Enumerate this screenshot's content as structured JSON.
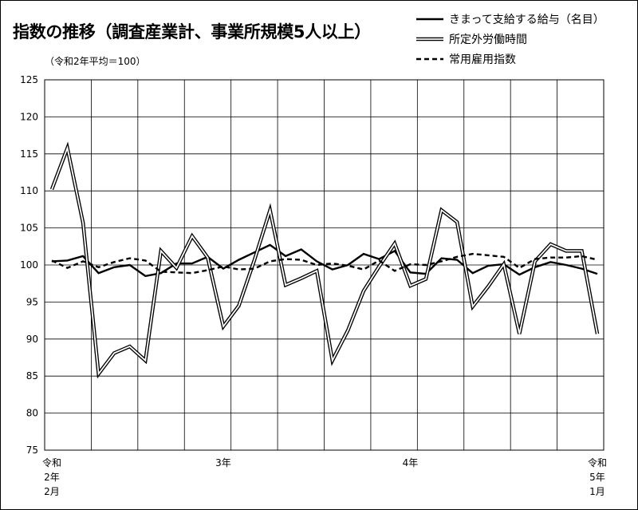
{
  "chart_data": {
    "type": "line",
    "title": "指数の推移（調査産業計、事業所規模5人以上）",
    "base_note": "（令和2年平均＝100）",
    "ylim": [
      75,
      125
    ],
    "ytick_step": 5,
    "grid": true,
    "legend_position": "top-right",
    "x_tick_labels": [
      {
        "index": 0,
        "lines": [
          "令和",
          "2年",
          "2月"
        ]
      },
      {
        "index": 11,
        "lines": [
          "3年"
        ]
      },
      {
        "index": 23,
        "lines": [
          "4年"
        ]
      },
      {
        "index": 35,
        "lines": [
          "令和",
          "5年",
          "1月"
        ]
      }
    ],
    "x_count": 36,
    "series": [
      {
        "name": "きまって支給する給与（名目）",
        "style": "solid",
        "values": [
          100.5,
          100.6,
          101.2,
          98.9,
          99.7,
          100.0,
          98.5,
          98.9,
          100.2,
          100.2,
          101.1,
          99.5,
          100.7,
          101.7,
          102.7,
          101.2,
          102.1,
          100.5,
          99.4,
          100.0,
          101.5,
          100.8,
          101.9,
          99.0,
          98.8,
          100.9,
          100.7,
          98.9,
          99.9,
          100.1,
          98.7,
          99.7,
          100.4,
          100.0,
          99.5,
          98.8
        ]
      },
      {
        "name": "所定外労働時間",
        "style": "double",
        "values": [
          110.2,
          115.8,
          105.7,
          85.3,
          88.1,
          89.0,
          87.1,
          101.9,
          99.6,
          103.9,
          101.0,
          91.7,
          94.5,
          100.7,
          107.4,
          97.3,
          98.2,
          99.2,
          87.1,
          91.2,
          96.5,
          99.8,
          102.9,
          97.2,
          98.1,
          107.4,
          105.8,
          94.4,
          97.1,
          100.1,
          90.7,
          100.5,
          102.8,
          101.9,
          101.9,
          90.7
        ]
      },
      {
        "name": "常用雇用指数",
        "style": "dashed",
        "values": [
          100.6,
          99.6,
          100.5,
          99.7,
          100.4,
          100.9,
          100.6,
          99.1,
          99.0,
          98.9,
          99.3,
          99.8,
          99.4,
          99.5,
          100.5,
          100.8,
          100.7,
          100.0,
          100.2,
          99.9,
          99.4,
          100.6,
          99.2,
          100.1,
          100.0,
          100.5,
          101.1,
          101.5,
          101.3,
          101.1,
          99.6,
          100.8,
          101.0,
          101.0,
          101.2,
          100.7
        ]
      }
    ]
  }
}
